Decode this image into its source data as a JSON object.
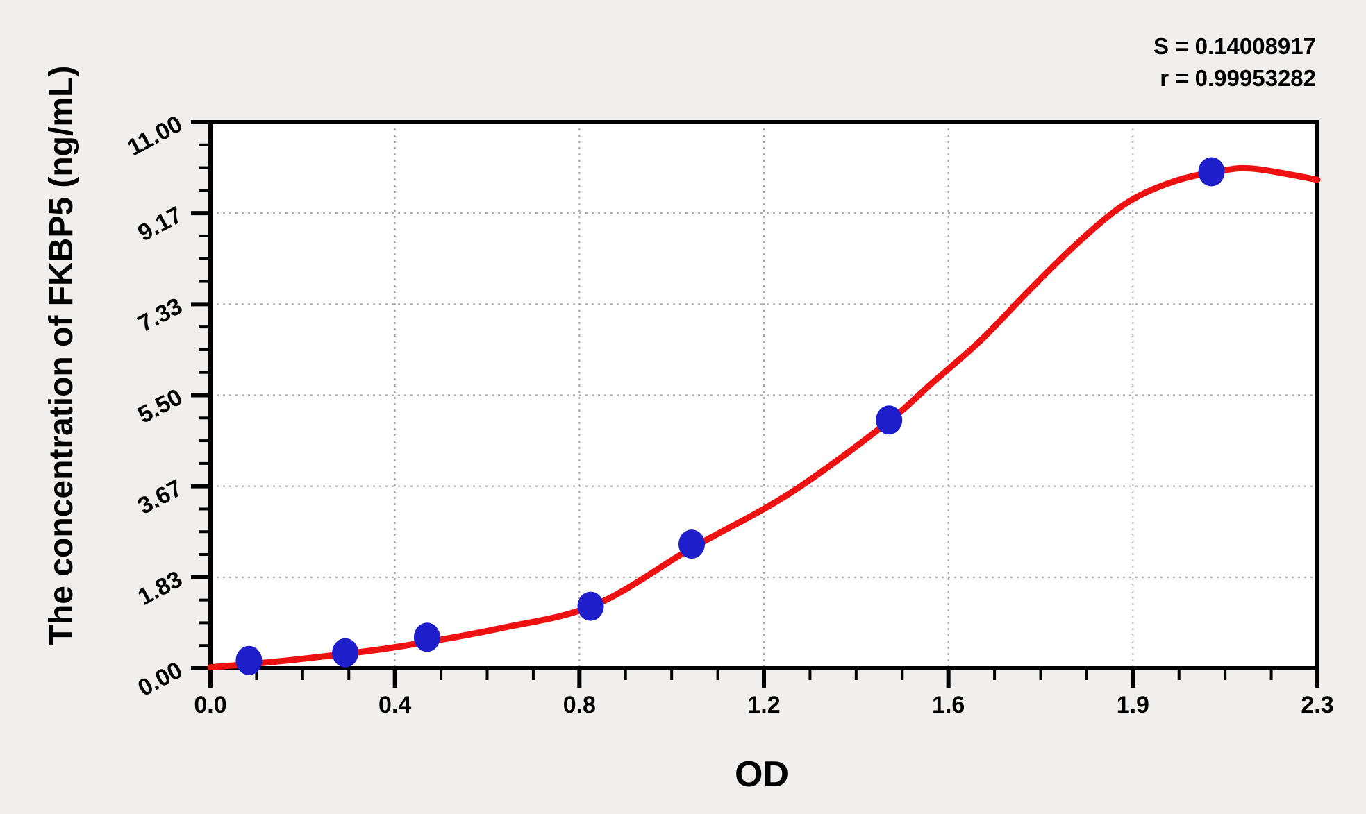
{
  "figure": {
    "outer_background": "#f0efed"
  },
  "chart_data": {
    "type": "scatter",
    "title": "",
    "xlabel": "OD",
    "ylabel": "The concentration of FKBP5 (ng/mL)",
    "xlim": [
      0,
      2.3
    ],
    "ylim": [
      0,
      11
    ],
    "x_tick_labels": [
      "0.0",
      "0.4",
      "0.8",
      "1.2",
      "1.6",
      "1.9",
      "2.3"
    ],
    "y_tick_labels": [
      "0.00",
      "1.83",
      "3.67",
      "5.50",
      "7.33",
      "9.17",
      "11.00"
    ],
    "minor_ticks_per_major_interval": 3,
    "grid": {
      "style": "dotted",
      "at_major_ticks": true
    },
    "stats": {
      "s_label": "S = 0.14008917",
      "r_label": "r = 0.99953282",
      "S": 0.14008917,
      "r": 0.99953282
    },
    "series": [
      {
        "name": "standard-points",
        "marker": "ellipse",
        "points": [
          {
            "od": 0.08,
            "conc": 0.156
          },
          {
            "od": 0.28,
            "conc": 0.312
          },
          {
            "od": 0.45,
            "conc": 0.625
          },
          {
            "od": 0.79,
            "conc": 1.25
          },
          {
            "od": 1.0,
            "conc": 2.5
          },
          {
            "od": 1.41,
            "conc": 5.0
          },
          {
            "od": 2.08,
            "conc": 10.0
          }
        ]
      }
    ],
    "fit_curve": {
      "name": "regression-fit",
      "points": [
        [
          0.0,
          0.02
        ],
        [
          0.1,
          0.1
        ],
        [
          0.2,
          0.2
        ],
        [
          0.38,
          0.42
        ],
        [
          0.6,
          0.8
        ],
        [
          0.8,
          1.28
        ],
        [
          1.0,
          2.42
        ],
        [
          1.2,
          3.5
        ],
        [
          1.4,
          4.9
        ],
        [
          1.5,
          5.75
        ],
        [
          1.6,
          6.6
        ],
        [
          1.7,
          7.6
        ],
        [
          1.8,
          8.55
        ],
        [
          1.9,
          9.35
        ],
        [
          2.0,
          9.8
        ],
        [
          2.1,
          10.02
        ],
        [
          2.17,
          10.06
        ],
        [
          2.3,
          9.84
        ]
      ]
    },
    "colors": {
      "curve": "#ee1111",
      "marker": "#1e1ecb",
      "axis": "#000000",
      "grid": "#a3a3a3",
      "plot_background": "#ffffff",
      "outer_background": "#f0efed",
      "text": "#000000"
    }
  }
}
